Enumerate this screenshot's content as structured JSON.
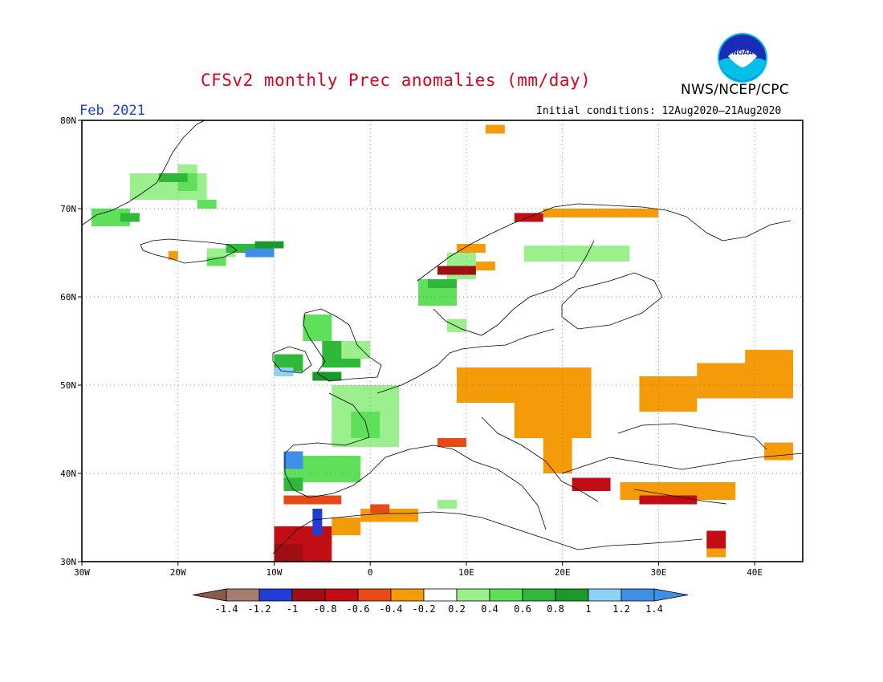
{
  "header": {
    "title": "CFSv2 monthly Prec anomalies (mm/day)",
    "month": "Feb 2021",
    "initial_conditions": "Initial conditions: 12Aug2020–21Aug2020",
    "agency": "NWS/NCEP/CPC",
    "logo_icon": "noaa-logo-icon"
  },
  "map": {
    "lon_range": [
      -30,
      45
    ],
    "lat_range": [
      30,
      80
    ],
    "lon_ticks": [
      {
        "value": -30,
        "label": "30W"
      },
      {
        "value": -20,
        "label": "20W"
      },
      {
        "value": -10,
        "label": "10W"
      },
      {
        "value": 0,
        "label": "0"
      },
      {
        "value": 10,
        "label": "10E"
      },
      {
        "value": 20,
        "label": "20E"
      },
      {
        "value": 30,
        "label": "30E"
      },
      {
        "value": 40,
        "label": "40E"
      }
    ],
    "lat_ticks": [
      {
        "value": 30,
        "label": "30N"
      },
      {
        "value": 40,
        "label": "40N"
      },
      {
        "value": 50,
        "label": "50N"
      },
      {
        "value": 60,
        "label": "60N"
      },
      {
        "value": 70,
        "label": "70N"
      },
      {
        "value": 80,
        "label": "80N"
      }
    ],
    "grid": "dotted"
  },
  "colorbar": {
    "colors": [
      "#8b5a4a",
      "#a77d6f",
      "#1f3ed6",
      "#9e0e12",
      "#c00e14",
      "#e64a16",
      "#f59b0a",
      "#ffffff",
      "#9bf08d",
      "#5ee05a",
      "#2fb83a",
      "#1a9a2a",
      "#8fd0f7",
      "#3f8fe6",
      "#3f8fe6"
    ],
    "labels": [
      "-1.4",
      "-1.2",
      "-1",
      "-0.8",
      "-0.6",
      "-0.4",
      "-0.2",
      "0.2",
      "0.4",
      "0.6",
      "0.8",
      "1",
      "1.2",
      "1.4"
    ]
  },
  "anomaly_cells": [
    {
      "lon": -25,
      "lat": 71,
      "w": 8,
      "h": 3,
      "c": "#9bf08d"
    },
    {
      "lon": -29,
      "lat": 68,
      "w": 4,
      "h": 2,
      "c": "#5ee05a"
    },
    {
      "lon": -26,
      "lat": 68.5,
      "w": 2,
      "h": 1,
      "c": "#2fb83a"
    },
    {
      "lon": -20,
      "lat": 72,
      "w": 2,
      "h": 2,
      "c": "#5ee05a"
    },
    {
      "lon": -22,
      "lat": 73,
      "w": 3,
      "h": 1,
      "c": "#2fb83a"
    },
    {
      "lon": -18,
      "lat": 70,
      "w": 2,
      "h": 1,
      "c": "#5ee05a"
    },
    {
      "lon": -20,
      "lat": 74,
      "w": 2,
      "h": 1,
      "c": "#9bf08d"
    },
    {
      "lon": -17,
      "lat": 64.5,
      "w": 3,
      "h": 1,
      "c": "#9bf08d"
    },
    {
      "lon": -15,
      "lat": 65,
      "w": 3,
      "h": 1,
      "c": "#2fb83a"
    },
    {
      "lon": -13,
      "lat": 64.5,
      "w": 3,
      "h": 1,
      "c": "#3f8fe6"
    },
    {
      "lon": -12,
      "lat": 65.5,
      "w": 3,
      "h": 0.8,
      "c": "#1a9a2a"
    },
    {
      "lon": -17,
      "lat": 63.5,
      "w": 2,
      "h": 1,
      "c": "#5ee05a"
    },
    {
      "lon": -21,
      "lat": 64.2,
      "w": 1,
      "h": 1,
      "c": "#f59b0a"
    },
    {
      "lon": -7,
      "lat": 55,
      "w": 3,
      "h": 3,
      "c": "#5ee05a"
    },
    {
      "lon": -5,
      "lat": 52,
      "w": 4,
      "h": 3,
      "c": "#2fb83a"
    },
    {
      "lon": -3,
      "lat": 53,
      "w": 3,
      "h": 2,
      "c": "#9bf08d"
    },
    {
      "lon": -10,
      "lat": 51.5,
      "w": 3,
      "h": 2,
      "c": "#2fb83a"
    },
    {
      "lon": -10,
      "lat": 51,
      "w": 2,
      "h": 1,
      "c": "#8fd0f7"
    },
    {
      "lon": -6,
      "lat": 50.5,
      "w": 3,
      "h": 1,
      "c": "#1a9a2a"
    },
    {
      "lon": -4,
      "lat": 43,
      "w": 7,
      "h": 7,
      "c": "#9bf08d"
    },
    {
      "lon": -2,
      "lat": 44,
      "w": 3,
      "h": 3,
      "c": "#5ee05a"
    },
    {
      "lon": -9,
      "lat": 39,
      "w": 8,
      "h": 3,
      "c": "#5ee05a"
    },
    {
      "lon": -9,
      "lat": 40.5,
      "w": 2,
      "h": 2,
      "c": "#3f8fe6"
    },
    {
      "lon": -9,
      "lat": 38,
      "w": 2,
      "h": 1.5,
      "c": "#2fb83a"
    },
    {
      "lon": -9,
      "lat": 36.5,
      "w": 6,
      "h": 1,
      "c": "#e64a16"
    },
    {
      "lon": -10,
      "lat": 30,
      "w": 6,
      "h": 4,
      "c": "#c00e14"
    },
    {
      "lon": -10,
      "lat": 30,
      "w": 3,
      "h": 2,
      "c": "#9e0e12"
    },
    {
      "lon": -6,
      "lat": 33,
      "w": 1,
      "h": 3,
      "c": "#1f3ed6"
    },
    {
      "lon": -4,
      "lat": 33,
      "w": 3,
      "h": 2,
      "c": "#f59b0a"
    },
    {
      "lon": -1,
      "lat": 34.5,
      "w": 6,
      "h": 1.5,
      "c": "#f59b0a"
    },
    {
      "lon": 0,
      "lat": 35.5,
      "w": 2,
      "h": 1,
      "c": "#e64a16"
    },
    {
      "lon": 9,
      "lat": 48,
      "w": 14,
      "h": 4,
      "c": "#f59b0a"
    },
    {
      "lon": 15,
      "lat": 44,
      "w": 8,
      "h": 4,
      "c": "#f59b0a"
    },
    {
      "lon": 18,
      "lat": 40,
      "w": 3,
      "h": 4,
      "c": "#f59b0a"
    },
    {
      "lon": 7,
      "lat": 43,
      "w": 3,
      "h": 1,
      "c": "#e64a16"
    },
    {
      "lon": 21,
      "lat": 38,
      "w": 4,
      "h": 1.5,
      "c": "#c00e14"
    },
    {
      "lon": 26,
      "lat": 37,
      "w": 12,
      "h": 2,
      "c": "#f59b0a"
    },
    {
      "lon": 28,
      "lat": 36.5,
      "w": 6,
      "h": 1,
      "c": "#c00e14"
    },
    {
      "lon": 28,
      "lat": 47,
      "w": 6,
      "h": 4,
      "c": "#f59b0a"
    },
    {
      "lon": 34,
      "lat": 48.5,
      "w": 10,
      "h": 4,
      "c": "#f59b0a"
    },
    {
      "lon": 39,
      "lat": 52.5,
      "w": 5,
      "h": 1.5,
      "c": "#f59b0a"
    },
    {
      "lon": 41,
      "lat": 41.5,
      "w": 3,
      "h": 2,
      "c": "#f59b0a"
    },
    {
      "lon": 35,
      "lat": 31.5,
      "w": 2,
      "h": 2,
      "c": "#c00e14"
    },
    {
      "lon": 35,
      "lat": 30.5,
      "w": 2,
      "h": 1,
      "c": "#f59b0a"
    },
    {
      "lon": 8,
      "lat": 62,
      "w": 3,
      "h": 3,
      "c": "#9bf08d"
    },
    {
      "lon": 5,
      "lat": 59,
      "w": 4,
      "h": 3,
      "c": "#5ee05a"
    },
    {
      "lon": 6,
      "lat": 61,
      "w": 3,
      "h": 1,
      "c": "#2fb83a"
    },
    {
      "lon": 7,
      "lat": 62.5,
      "w": 4,
      "h": 1,
      "c": "#9e0e12"
    },
    {
      "lon": 11,
      "lat": 63,
      "w": 2,
      "h": 1,
      "c": "#f59b0a"
    },
    {
      "lon": 16,
      "lat": 64,
      "w": 11,
      "h": 1.8,
      "c": "#9bf08d"
    },
    {
      "lon": 18,
      "lat": 69,
      "w": 12,
      "h": 1,
      "c": "#f59b0a"
    },
    {
      "lon": 15,
      "lat": 68.5,
      "w": 3,
      "h": 1,
      "c": "#c00e14"
    },
    {
      "lon": 9,
      "lat": 65,
      "w": 3,
      "h": 1,
      "c": "#f59b0a"
    },
    {
      "lon": 12,
      "lat": 78.5,
      "w": 2,
      "h": 1,
      "c": "#f59b0a"
    },
    {
      "lon": 8,
      "lat": 56,
      "w": 2,
      "h": 1.5,
      "c": "#9bf08d"
    },
    {
      "lon": 7,
      "lat": 36,
      "w": 2,
      "h": 1,
      "c": "#9bf08d"
    }
  ]
}
